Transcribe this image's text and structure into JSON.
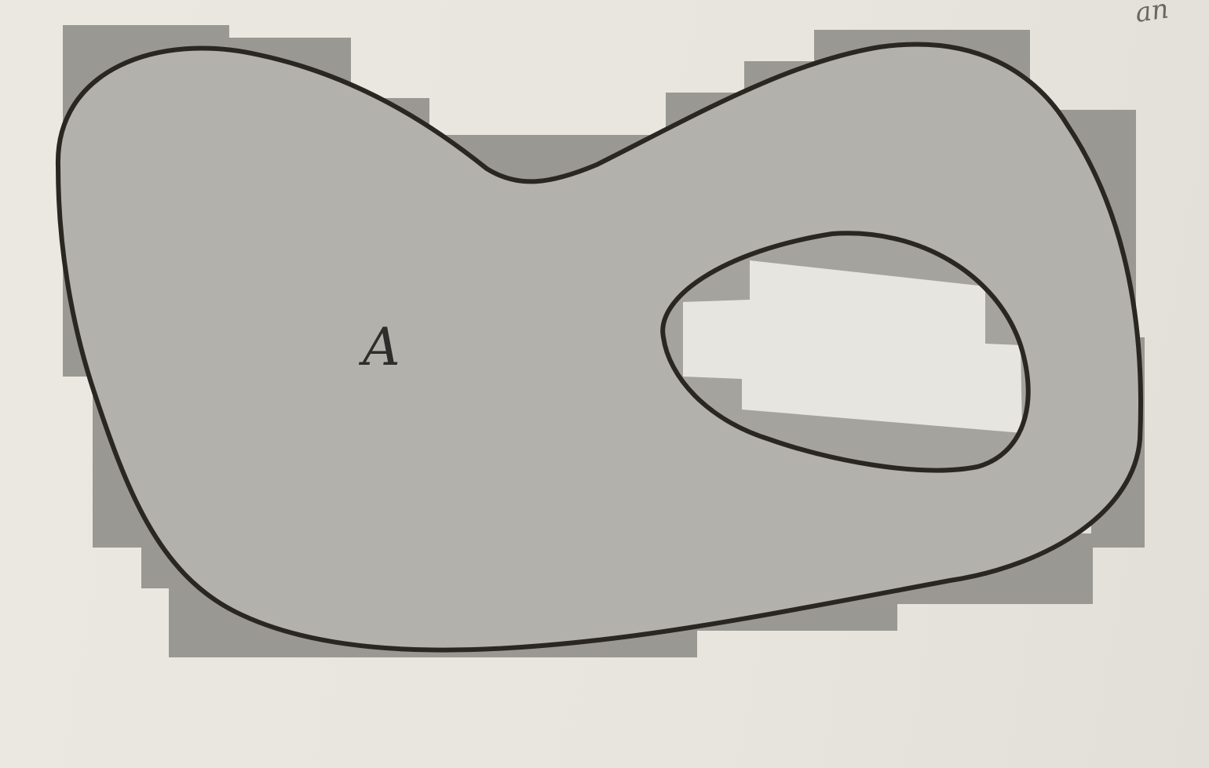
{
  "figure": {
    "region_label": "A",
    "corner_fragment": "an",
    "colors": {
      "page": "#e9e6df",
      "outer_rectangles": "#9a9893",
      "set_fill": "#b3b1ac",
      "hole_fill": "#e7e5e0",
      "outline": "#2a2722"
    }
  }
}
